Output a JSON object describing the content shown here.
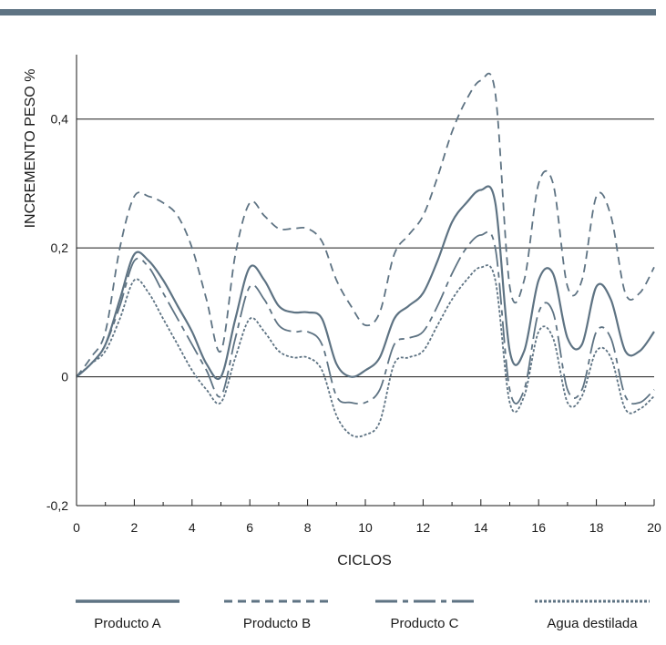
{
  "chart_data": {
    "type": "line",
    "title": "",
    "xlabel": "CICLOS",
    "ylabel": "INCREMENTO PESO %",
    "xlim": [
      0,
      20
    ],
    "ylim": [
      -0.2,
      0.5
    ],
    "x_ticks": [
      0,
      2,
      4,
      6,
      8,
      10,
      12,
      14,
      16,
      18,
      20
    ],
    "x_tick_labels": [
      "0",
      "2",
      "4",
      "6",
      "8",
      "10",
      "12",
      "14",
      "16",
      "18",
      "20"
    ],
    "y_ticks": [
      -0.2,
      0,
      0.2,
      0.4
    ],
    "y_tick_labels": [
      "-0,2",
      "0",
      "0,2",
      "0,4"
    ],
    "grid": "horizontal",
    "legend_position": "bottom",
    "colors": {
      "line": "#5e7383",
      "top_bar": "#5e7383",
      "axis": "#1a1a1a"
    },
    "series": [
      {
        "name": "Producto A",
        "dash": "solid",
        "points": [
          [
            0,
            0
          ],
          [
            0.5,
            0.02
          ],
          [
            1,
            0.05
          ],
          [
            1.5,
            0.12
          ],
          [
            2,
            0.19
          ],
          [
            2.5,
            0.18
          ],
          [
            3,
            0.15
          ],
          [
            3.5,
            0.11
          ],
          [
            4,
            0.07
          ],
          [
            4.5,
            0.02
          ],
          [
            5,
            0
          ],
          [
            5.5,
            0.09
          ],
          [
            6,
            0.17
          ],
          [
            6.5,
            0.15
          ],
          [
            7,
            0.11
          ],
          [
            7.5,
            0.1
          ],
          [
            8,
            0.1
          ],
          [
            8.5,
            0.09
          ],
          [
            9,
            0.02
          ],
          [
            9.5,
            0
          ],
          [
            10,
            0.01
          ],
          [
            10.5,
            0.03
          ],
          [
            11,
            0.09
          ],
          [
            11.5,
            0.11
          ],
          [
            12,
            0.13
          ],
          [
            12.5,
            0.18
          ],
          [
            13,
            0.24
          ],
          [
            13.5,
            0.27
          ],
          [
            14,
            0.29
          ],
          [
            14.5,
            0.27
          ],
          [
            15,
            0.04
          ],
          [
            15.5,
            0.04
          ],
          [
            16,
            0.15
          ],
          [
            16.5,
            0.16
          ],
          [
            17,
            0.06
          ],
          [
            17.5,
            0.05
          ],
          [
            18,
            0.14
          ],
          [
            18.5,
            0.12
          ],
          [
            19,
            0.04
          ],
          [
            19.5,
            0.04
          ],
          [
            20,
            0.07
          ]
        ]
      },
      {
        "name": "Producto B",
        "dash": "dashed",
        "points": [
          [
            0,
            0
          ],
          [
            0.5,
            0.03
          ],
          [
            1,
            0.07
          ],
          [
            1.5,
            0.2
          ],
          [
            2,
            0.28
          ],
          [
            2.5,
            0.28
          ],
          [
            3,
            0.27
          ],
          [
            3.5,
            0.25
          ],
          [
            4,
            0.2
          ],
          [
            4.5,
            0.12
          ],
          [
            5,
            0.04
          ],
          [
            5.5,
            0.19
          ],
          [
            6,
            0.27
          ],
          [
            6.5,
            0.25
          ],
          [
            7,
            0.23
          ],
          [
            7.5,
            0.23
          ],
          [
            8,
            0.23
          ],
          [
            8.5,
            0.21
          ],
          [
            9,
            0.15
          ],
          [
            9.5,
            0.11
          ],
          [
            10,
            0.08
          ],
          [
            10.5,
            0.1
          ],
          [
            11,
            0.19
          ],
          [
            11.5,
            0.22
          ],
          [
            12,
            0.25
          ],
          [
            12.5,
            0.31
          ],
          [
            13,
            0.38
          ],
          [
            13.5,
            0.43
          ],
          [
            14,
            0.46
          ],
          [
            14.5,
            0.44
          ],
          [
            15,
            0.14
          ],
          [
            15.5,
            0.15
          ],
          [
            16,
            0.3
          ],
          [
            16.5,
            0.3
          ],
          [
            17,
            0.14
          ],
          [
            17.5,
            0.15
          ],
          [
            18,
            0.28
          ],
          [
            18.5,
            0.25
          ],
          [
            19,
            0.13
          ],
          [
            19.5,
            0.13
          ],
          [
            20,
            0.17
          ]
        ]
      },
      {
        "name": "Producto C",
        "dash": "dash-dot",
        "points": [
          [
            0,
            0
          ],
          [
            0.5,
            0.02
          ],
          [
            1,
            0.05
          ],
          [
            1.5,
            0.11
          ],
          [
            2,
            0.18
          ],
          [
            2.5,
            0.17
          ],
          [
            3,
            0.13
          ],
          [
            3.5,
            0.09
          ],
          [
            4,
            0.05
          ],
          [
            4.5,
            0.01
          ],
          [
            5,
            -0.03
          ],
          [
            5.5,
            0.06
          ],
          [
            6,
            0.14
          ],
          [
            6.5,
            0.12
          ],
          [
            7,
            0.08
          ],
          [
            7.5,
            0.07
          ],
          [
            8,
            0.07
          ],
          [
            8.5,
            0.05
          ],
          [
            9,
            -0.03
          ],
          [
            9.5,
            -0.04
          ],
          [
            10,
            -0.04
          ],
          [
            10.5,
            -0.02
          ],
          [
            11,
            0.05
          ],
          [
            11.5,
            0.06
          ],
          [
            12,
            0.07
          ],
          [
            12.5,
            0.11
          ],
          [
            13,
            0.16
          ],
          [
            13.5,
            0.2
          ],
          [
            14,
            0.22
          ],
          [
            14.5,
            0.2
          ],
          [
            15,
            -0.02
          ],
          [
            15.5,
            -0.02
          ],
          [
            16,
            0.1
          ],
          [
            16.5,
            0.1
          ],
          [
            17,
            -0.02
          ],
          [
            17.5,
            -0.02
          ],
          [
            18,
            0.07
          ],
          [
            18.5,
            0.06
          ],
          [
            19,
            -0.03
          ],
          [
            19.5,
            -0.04
          ],
          [
            20,
            -0.02
          ]
        ]
      },
      {
        "name": "Agua destilada",
        "dash": "dotted",
        "points": [
          [
            0,
            0
          ],
          [
            0.5,
            0.02
          ],
          [
            1,
            0.04
          ],
          [
            1.5,
            0.09
          ],
          [
            2,
            0.15
          ],
          [
            2.5,
            0.13
          ],
          [
            3,
            0.09
          ],
          [
            3.5,
            0.05
          ],
          [
            4,
            0.01
          ],
          [
            4.5,
            -0.02
          ],
          [
            5,
            -0.04
          ],
          [
            5.5,
            0.03
          ],
          [
            6,
            0.09
          ],
          [
            6.5,
            0.07
          ],
          [
            7,
            0.04
          ],
          [
            7.5,
            0.03
          ],
          [
            8,
            0.03
          ],
          [
            8.5,
            0.01
          ],
          [
            9,
            -0.06
          ],
          [
            9.5,
            -0.09
          ],
          [
            10,
            -0.09
          ],
          [
            10.5,
            -0.07
          ],
          [
            11,
            0.02
          ],
          [
            11.5,
            0.03
          ],
          [
            12,
            0.04
          ],
          [
            12.5,
            0.08
          ],
          [
            13,
            0.12
          ],
          [
            13.5,
            0.15
          ],
          [
            14,
            0.17
          ],
          [
            14.5,
            0.15
          ],
          [
            15,
            -0.04
          ],
          [
            15.5,
            -0.03
          ],
          [
            16,
            0.07
          ],
          [
            16.5,
            0.06
          ],
          [
            17,
            -0.04
          ],
          [
            17.5,
            -0.03
          ],
          [
            18,
            0.04
          ],
          [
            18.5,
            0.03
          ],
          [
            19,
            -0.05
          ],
          [
            19.5,
            -0.05
          ],
          [
            20,
            -0.03
          ]
        ]
      }
    ]
  }
}
